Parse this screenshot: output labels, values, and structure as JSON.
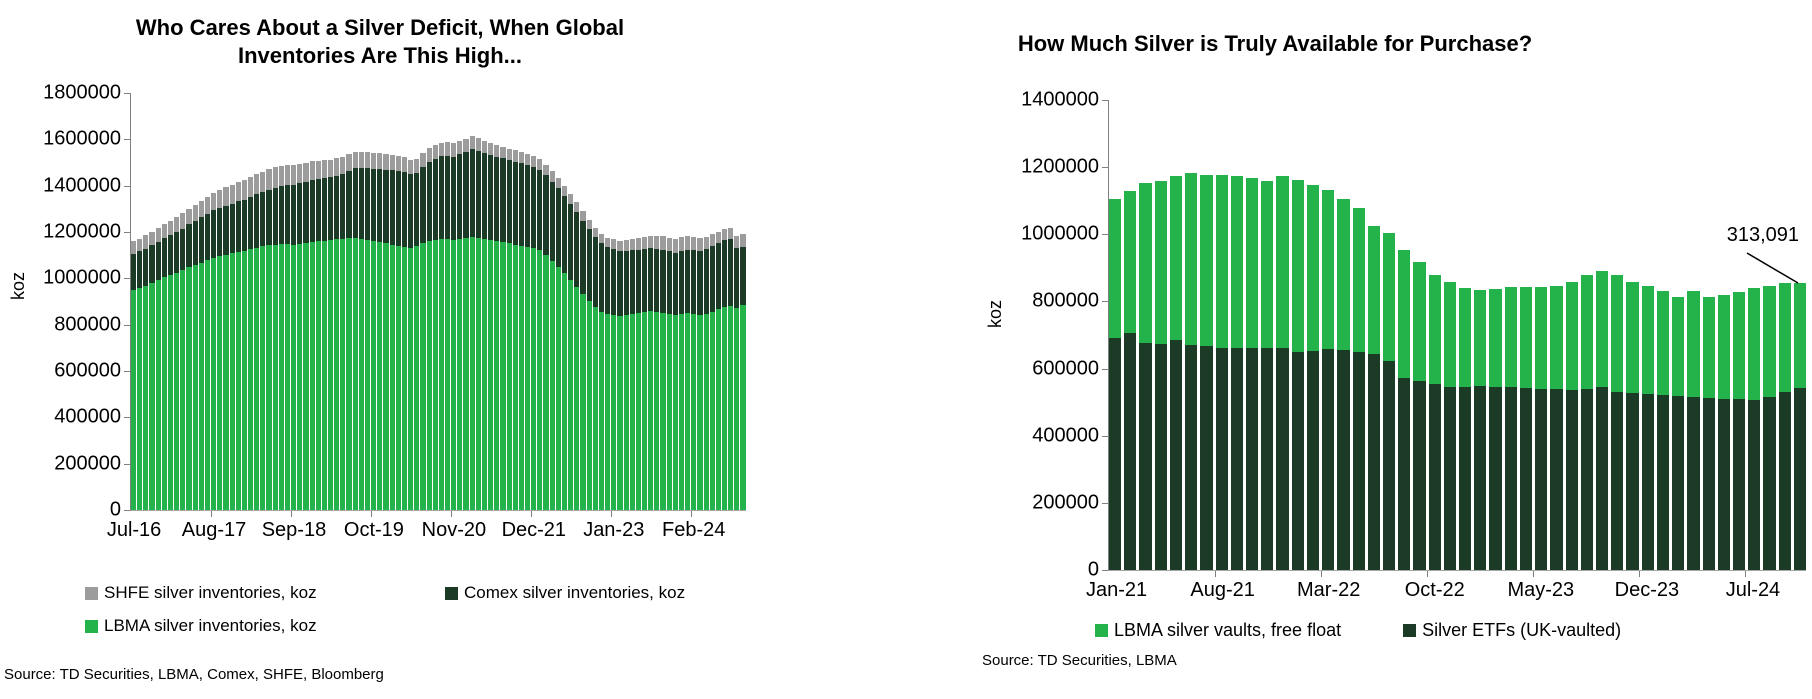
{
  "chart_data": [
    {
      "type": "bar",
      "stacked": true,
      "title": "Who Cares About a Silver Deficit, When Global Inventories Are This High...",
      "ylabel": "koz",
      "ylim": [
        0,
        1800000
      ],
      "y_tick_step": 200000,
      "grid": false,
      "legend_position": "bottom",
      "x_tick_labels": [
        "Jul-16",
        "Aug-17",
        "Sep-18",
        "Oct-19",
        "Nov-20",
        "Dec-21",
        "Jan-23",
        "Feb-24"
      ],
      "label_every": 13,
      "categories": [
        "Jul-16",
        "Aug-16",
        "Sep-16",
        "Oct-16",
        "Nov-16",
        "Dec-16",
        "Jan-17",
        "Feb-17",
        "Mar-17",
        "Apr-17",
        "May-17",
        "Jun-17",
        "Jul-17",
        "Aug-17",
        "Sep-17",
        "Oct-17",
        "Nov-17",
        "Dec-17",
        "Jan-18",
        "Feb-18",
        "Mar-18",
        "Apr-18",
        "May-18",
        "Jun-18",
        "Jul-18",
        "Aug-18",
        "Sep-18",
        "Oct-18",
        "Nov-18",
        "Dec-18",
        "Jan-19",
        "Feb-19",
        "Mar-19",
        "Apr-19",
        "May-19",
        "Jun-19",
        "Jul-19",
        "Aug-19",
        "Sep-19",
        "Oct-19",
        "Nov-19",
        "Dec-19",
        "Jan-20",
        "Feb-20",
        "Mar-20",
        "Apr-20",
        "May-20",
        "Jun-20",
        "Jul-20",
        "Aug-20",
        "Sep-20",
        "Oct-20",
        "Nov-20",
        "Dec-20",
        "Jan-21",
        "Feb-21",
        "Mar-21",
        "Apr-21",
        "May-21",
        "Jun-21",
        "Jul-21",
        "Aug-21",
        "Sep-21",
        "Oct-21",
        "Nov-21",
        "Dec-21",
        "Jan-22",
        "Feb-22",
        "Mar-22",
        "Apr-22",
        "May-22",
        "Jun-22",
        "Jul-22",
        "Aug-22",
        "Sep-22",
        "Oct-22",
        "Nov-22",
        "Dec-22",
        "Jan-23",
        "Feb-23",
        "Mar-23",
        "Apr-23",
        "May-23",
        "Jun-23",
        "Jul-23",
        "Aug-23",
        "Sep-23",
        "Oct-23",
        "Nov-23",
        "Dec-23",
        "Jan-24",
        "Feb-24",
        "Mar-24",
        "Apr-24",
        "May-24",
        "Jun-24",
        "Jul-24",
        "Aug-24",
        "Sep-24",
        "Oct-24"
      ],
      "series": [
        {
          "name": "LBMA silver inventories, koz",
          "color": "#24B24A",
          "values": [
            950000,
            958000,
            968000,
            980000,
            992000,
            1005000,
            1015000,
            1025000,
            1035000,
            1048000,
            1058000,
            1068000,
            1078000,
            1088000,
            1095000,
            1102000,
            1108000,
            1115000,
            1120000,
            1126000,
            1132000,
            1138000,
            1142000,
            1146000,
            1150000,
            1148000,
            1145000,
            1150000,
            1154000,
            1158000,
            1160000,
            1163000,
            1165000,
            1168000,
            1170000,
            1173000,
            1175000,
            1171000,
            1166000,
            1161000,
            1156000,
            1151000,
            1146000,
            1141000,
            1136000,
            1131000,
            1141000,
            1151000,
            1161000,
            1166000,
            1171000,
            1171000,
            1166000,
            1171000,
            1176000,
            1180000,
            1176000,
            1171000,
            1166000,
            1161000,
            1156000,
            1151000,
            1146000,
            1141000,
            1136000,
            1131000,
            1121000,
            1101000,
            1076000,
            1051000,
            1021000,
            991000,
            961000,
            931000,
            901000,
            876000,
            856000,
            846000,
            841000,
            836000,
            841000,
            846000,
            851000,
            856000,
            861000,
            856000,
            851000,
            846000,
            841000,
            846000,
            851000,
            846000,
            841000,
            846000,
            856000,
            866000,
            876000,
            881000,
            871000,
            886000
          ]
        },
        {
          "name": "Comex silver inventories, koz",
          "color": "#1C3B26",
          "values": [
            155000,
            158000,
            160000,
            162000,
            165000,
            168000,
            170000,
            175000,
            180000,
            185000,
            190000,
            195000,
            200000,
            205000,
            210000,
            212000,
            215000,
            218000,
            220000,
            225000,
            230000,
            235000,
            240000,
            245000,
            250000,
            255000,
            258000,
            260000,
            262000,
            265000,
            268000,
            270000,
            272000,
            275000,
            280000,
            290000,
            300000,
            305000,
            310000,
            312000,
            315000,
            318000,
            320000,
            322000,
            325000,
            318000,
            312000,
            330000,
            340000,
            350000,
            355000,
            358000,
            360000,
            365000,
            370000,
            380000,
            375000,
            370000,
            368000,
            365000,
            362000,
            360000,
            358000,
            355000,
            352000,
            350000,
            348000,
            345000,
            342000,
            340000,
            335000,
            330000,
            325000,
            318000,
            310000,
            302000,
            295000,
            290000,
            285000,
            280000,
            278000,
            275000,
            272000,
            270000,
            268000,
            270000,
            272000,
            270000,
            268000,
            270000,
            272000,
            275000,
            278000,
            280000,
            282000,
            285000,
            288000,
            290000,
            262000,
            250000
          ]
        },
        {
          "name": "SHFE silver inventories, koz",
          "color": "#9C9C9C",
          "values": [
            55000,
            56000,
            57000,
            58000,
            59000,
            60000,
            62000,
            64000,
            66000,
            68000,
            70000,
            72000,
            74000,
            76000,
            78000,
            80000,
            82000,
            84000,
            85000,
            86000,
            87000,
            88000,
            88000,
            88000,
            87000,
            86000,
            85000,
            84000,
            83000,
            82000,
            80000,
            78000,
            76000,
            75000,
            74000,
            73000,
            72000,
            71000,
            70000,
            70000,
            69000,
            68000,
            67000,
            66000,
            65000,
            64000,
            63000,
            62000,
            61000,
            60000,
            59000,
            58000,
            57000,
            56000,
            55000,
            54000,
            53000,
            52000,
            51000,
            50000,
            50000,
            49000,
            49000,
            48000,
            48000,
            47000,
            46000,
            45000,
            44000,
            43000,
            43000,
            42000,
            42000,
            41000,
            41000,
            40000,
            40000,
            40000,
            42000,
            44000,
            46000,
            48000,
            50000,
            52000,
            54000,
            56000,
            58000,
            60000,
            62000,
            64000,
            60000,
            58000,
            56000,
            54000,
            52000,
            50000,
            48000,
            46000,
            50000,
            56000
          ]
        }
      ],
      "legend": [
        "SHFE silver inventories, koz",
        "Comex silver inventories, koz",
        "LBMA silver inventories, koz"
      ],
      "source": "Source: TD Securities, LBMA, Comex, SHFE, Bloomberg"
    },
    {
      "type": "bar",
      "stacked": true,
      "title": "How Much Silver is Truly Available for Purchase?",
      "ylabel": "koz",
      "ylim": [
        0,
        1400000
      ],
      "y_tick_step": 200000,
      "grid": false,
      "legend_position": "bottom",
      "x_tick_labels": [
        "Jan-21",
        "Aug-21",
        "Mar-22",
        "Oct-22",
        "May-23",
        "Dec-23",
        "Jul-24"
      ],
      "label_every": 7,
      "categories": [
        "Jan-21",
        "Feb-21",
        "Mar-21",
        "Apr-21",
        "May-21",
        "Jun-21",
        "Jul-21",
        "Aug-21",
        "Sep-21",
        "Oct-21",
        "Nov-21",
        "Dec-21",
        "Jan-22",
        "Feb-22",
        "Mar-22",
        "Apr-22",
        "May-22",
        "Jun-22",
        "Jul-22",
        "Aug-22",
        "Sep-22",
        "Oct-22",
        "Nov-22",
        "Dec-22",
        "Jan-23",
        "Feb-23",
        "Mar-23",
        "Apr-23",
        "May-23",
        "Jun-23",
        "Jul-23",
        "Aug-23",
        "Sep-23",
        "Oct-23",
        "Nov-23",
        "Dec-23",
        "Jan-24",
        "Feb-24",
        "Mar-24",
        "Apr-24",
        "May-24",
        "Jun-24",
        "Jul-24",
        "Aug-24",
        "Sep-24",
        "Oct-24"
      ],
      "series": [
        {
          "name": "Silver ETFs (UK-vaulted)",
          "color": "#1C3B26",
          "values": [
            690000,
            705000,
            675000,
            672000,
            685000,
            670000,
            668000,
            662000,
            660000,
            662000,
            660000,
            660000,
            650000,
            652000,
            658000,
            656000,
            650000,
            644000,
            622000,
            572000,
            562000,
            553000,
            546000,
            545000,
            547000,
            545000,
            544000,
            542000,
            540000,
            538000,
            535000,
            540000,
            545000,
            530000,
            528000,
            525000,
            520000,
            518000,
            515000,
            512000,
            510000,
            508000,
            505000,
            515000,
            530000,
            542000
          ]
        },
        {
          "name": "LBMA silver vaults, free float",
          "color": "#24B24A",
          "values": [
            415000,
            425000,
            478000,
            486000,
            488000,
            512000,
            510000,
            516000,
            515000,
            505000,
            500000,
            515000,
            512000,
            495000,
            475000,
            450000,
            428000,
            380000,
            382000,
            382000,
            355000,
            325000,
            312000,
            295000,
            288000,
            292000,
            298000,
            300000,
            302000,
            308000,
            322000,
            340000,
            345000,
            350000,
            330000,
            320000,
            310000,
            295000,
            315000,
            302000,
            310000,
            320000,
            335000,
            330000,
            325000,
            313091
          ]
        }
      ],
      "legend": [
        "LBMA silver vaults, free float",
        "Silver ETFs (UK-vaulted)"
      ],
      "annotation": {
        "text": "313,091",
        "points_to_category": "Oct-24",
        "points_to_series": "LBMA silver vaults, free float"
      },
      "source": "Source: TD Securities, LBMA"
    }
  ]
}
